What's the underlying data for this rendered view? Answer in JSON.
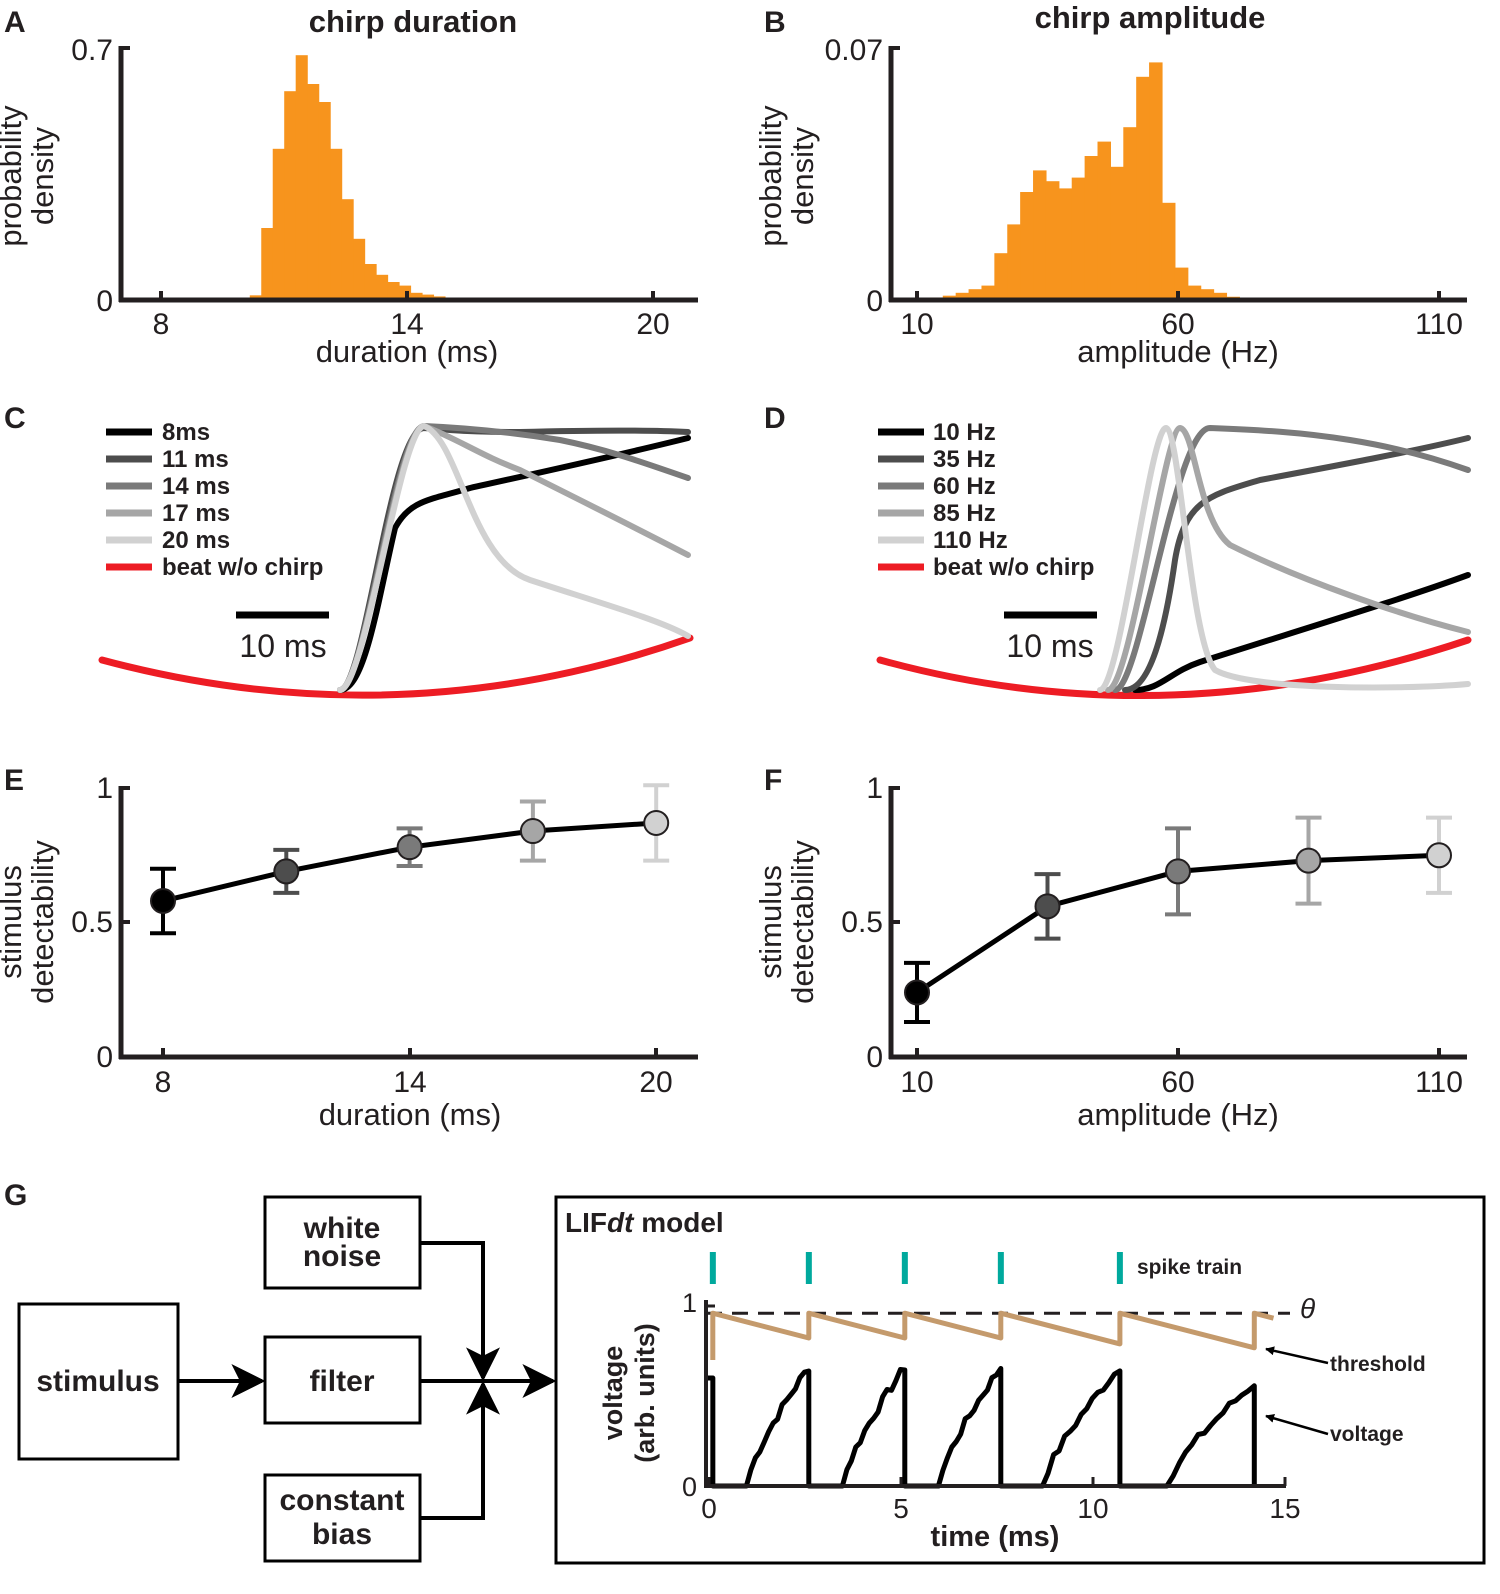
{
  "panel_labels": [
    "A",
    "B",
    "C",
    "D",
    "E",
    "F",
    "G"
  ],
  "colors": {
    "histogram": "#f7941d",
    "beat": "#ed1c24",
    "spike": "#00a99d",
    "threshold": "#c49a6c",
    "voltage": "#000000",
    "shades": [
      "#000000",
      "#4d4d4d",
      "#7a7a7a",
      "#a6a6a6",
      "#d1d1d1"
    ]
  },
  "chart_data": [
    {
      "panel": "A",
      "type": "bar",
      "title": "chirp duration",
      "xlabel": "duration (ms)",
      "ylabel": "probability density",
      "xlim": [
        7.5,
        21
      ],
      "ylim": [
        0,
        0.7
      ],
      "xticks": [
        8,
        14,
        20
      ],
      "ytick_labels": [
        "0",
        "0.7"
      ],
      "bin_width": 0.27,
      "bin_starts": [
        9.8,
        10.07,
        10.34,
        10.61,
        10.88,
        11.15,
        11.42,
        11.69,
        11.96,
        12.23,
        12.5,
        12.77,
        13.04,
        13.31,
        13.58,
        13.85,
        14.12,
        14.39,
        14.66
      ],
      "values": [
        0.005,
        0.013,
        0.2,
        0.42,
        0.58,
        0.68,
        0.6,
        0.55,
        0.42,
        0.28,
        0.17,
        0.1,
        0.07,
        0.05,
        0.04,
        0.02,
        0.015,
        0.01,
        0.005
      ]
    },
    {
      "panel": "B",
      "type": "bar",
      "title": "chirp amplitude",
      "xlabel": "amplitude (Hz)",
      "ylabel": "probability density",
      "xlim": [
        5,
        115
      ],
      "ylim": [
        0,
        0.07
      ],
      "xticks": [
        10,
        60,
        110
      ],
      "ytick_labels": [
        "0",
        "0.07"
      ],
      "bin_width": 2.47,
      "bin_starts": [
        10.0,
        12.47,
        14.94,
        17.41,
        19.88,
        22.35,
        24.82,
        27.29,
        29.76,
        32.23,
        34.7,
        37.17,
        39.64,
        42.11,
        44.58,
        47.05,
        49.52,
        51.99,
        54.46,
        56.93,
        59.4,
        61.87,
        64.34,
        66.81,
        69.28
      ],
      "values": [
        0.0002,
        0.0007,
        0.0012,
        0.002,
        0.003,
        0.004,
        0.013,
        0.021,
        0.03,
        0.036,
        0.033,
        0.031,
        0.034,
        0.04,
        0.044,
        0.037,
        0.048,
        0.062,
        0.066,
        0.027,
        0.009,
        0.004,
        0.003,
        0.002,
        0.0009
      ]
    },
    {
      "panel": "C",
      "type": "line",
      "legend": [
        "8ms",
        "11 ms",
        "14 ms",
        "17 ms",
        "20 ms",
        "beat w/o chirp"
      ],
      "scalebar_label": "10 ms"
    },
    {
      "panel": "D",
      "type": "line",
      "legend": [
        "10 Hz",
        "35 Hz",
        "60 Hz",
        "85 Hz",
        "110 Hz",
        "beat w/o chirp"
      ],
      "scalebar_label": "10 ms"
    },
    {
      "panel": "E",
      "type": "line",
      "xlabel": "duration (ms)",
      "ylabel": "stimulus detectability",
      "xlim": [
        7.5,
        21
      ],
      "ylim": [
        0,
        1
      ],
      "xticks": [
        8,
        14,
        20
      ],
      "ytick_labels": [
        "0",
        "0.5",
        "1"
      ],
      "x": [
        8,
        11,
        14,
        17,
        20
      ],
      "y": [
        0.58,
        0.69,
        0.78,
        0.84,
        0.87
      ],
      "err": [
        0.12,
        0.08,
        0.07,
        0.11,
        0.14
      ]
    },
    {
      "panel": "F",
      "type": "line",
      "xlabel": "amplitude (Hz)",
      "ylabel": "stimulus detectability",
      "xlim": [
        5,
        115
      ],
      "ylim": [
        0,
        1
      ],
      "xticks": [
        10,
        60,
        110
      ],
      "ytick_labels": [
        "0",
        "0.5",
        "1"
      ],
      "x": [
        10,
        35,
        60,
        85,
        110
      ],
      "y": [
        0.24,
        0.56,
        0.69,
        0.73,
        0.75
      ],
      "err": [
        0.11,
        0.12,
        0.16,
        0.16,
        0.14
      ]
    },
    {
      "panel": "G",
      "type": "line",
      "title": "LIFdt model",
      "title_plain": "LIF",
      "title_italic": "dt",
      "title_rest": " model",
      "xlabel": "time (ms)",
      "ylabel": "voltage (arb. units)",
      "xlim": [
        0,
        15
      ],
      "ylim": [
        0,
        1
      ],
      "xticks": [
        0,
        5,
        10,
        15
      ],
      "ytick_labels": [
        "0",
        "1"
      ],
      "spike_times": [
        0.1,
        2.6,
        5.1,
        7.6,
        10.7,
        14.2
      ],
      "annotations": {
        "spike_train": "spike train",
        "theta": "θ",
        "threshold": "threshold",
        "voltage": "voltage"
      }
    }
  ],
  "diagram": {
    "stimulus": "stimulus",
    "white_noise": [
      "white",
      "noise"
    ],
    "filter": "filter",
    "constant_bias": [
      "constant",
      "bias"
    ]
  }
}
